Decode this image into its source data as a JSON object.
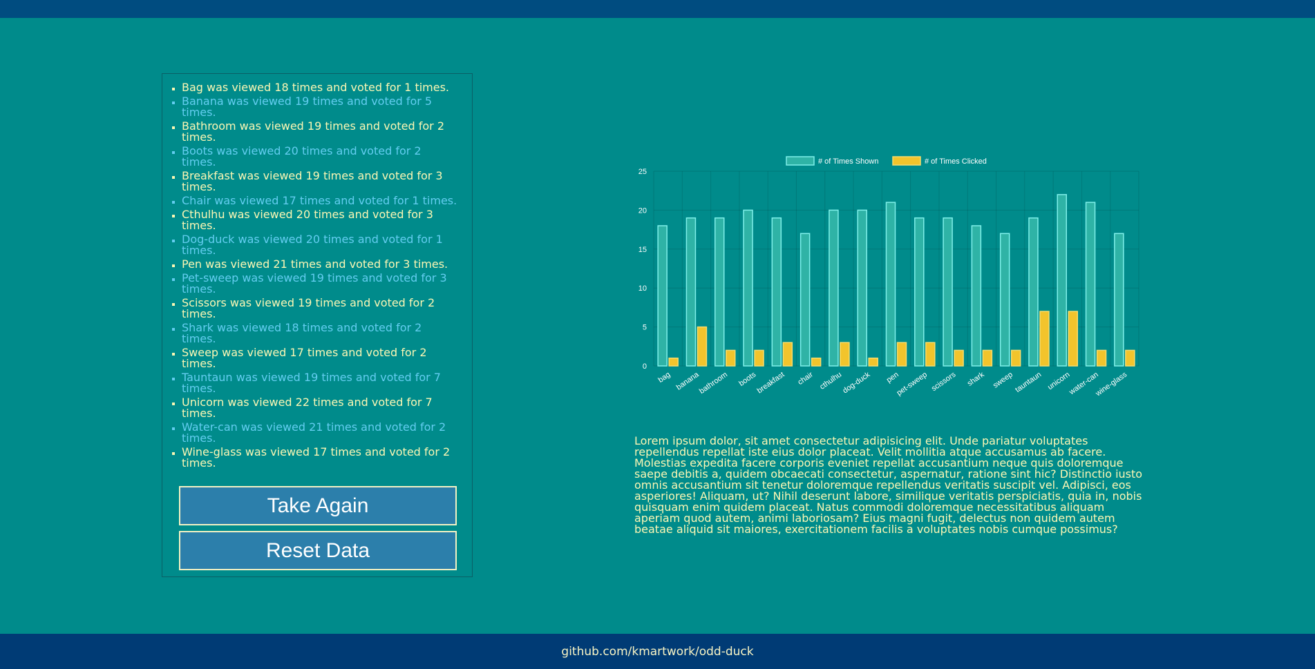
{
  "results": {
    "items": [
      "Bag was viewed 18 times and voted for 1 times.",
      "Banana was viewed 19 times and voted for 5 times.",
      "Bathroom was viewed 19 times and voted for 2 times.",
      "Boots was viewed 20 times and voted for 2 times.",
      "Breakfast was viewed 19 times and voted for 3 times.",
      "Chair was viewed 17 times and voted for 1 times.",
      "Cthulhu was viewed 20 times and voted for 3 times.",
      "Dog-duck was viewed 20 times and voted for 1 times.",
      "Pen was viewed 21 times and voted for 3 times.",
      "Pet-sweep was viewed 19 times and voted for 3 times.",
      "Scissors was viewed 19 times and voted for 2 times.",
      "Shark was viewed 18 times and voted for 2 times.",
      "Sweep was viewed 17 times and voted for 2 times.",
      "Tauntaun was viewed 19 times and voted for 7 times.",
      "Unicorn was viewed 22 times and voted for 7 times.",
      "Water-can was viewed 21 times and voted for 2 times.",
      "Wine-glass was viewed 17 times and voted for 2 times."
    ],
    "take_again_label": "Take Again",
    "reset_label": "Reset Data"
  },
  "chart_data": {
    "type": "bar",
    "categories": [
      "bag",
      "banana",
      "bathroom",
      "boots",
      "breakfast",
      "chair",
      "cthulhu",
      "dog-duck",
      "pen",
      "pet-sweep",
      "scissors",
      "shark",
      "sweep",
      "tauntaun",
      "unicorn",
      "water-can",
      "wine-glass"
    ],
    "series": [
      {
        "name": "# of Times Shown",
        "values": [
          18,
          19,
          19,
          20,
          19,
          17,
          20,
          20,
          21,
          19,
          19,
          18,
          17,
          19,
          22,
          21,
          17
        ],
        "fill": "#2fb3a6",
        "stroke": "#7ff0ea"
      },
      {
        "name": "# of Times Clicked",
        "values": [
          1,
          5,
          2,
          2,
          3,
          1,
          3,
          1,
          3,
          3,
          2,
          2,
          2,
          7,
          7,
          2,
          2
        ],
        "fill": "#f2c42c",
        "stroke": "#f8dc6c"
      }
    ],
    "yticks": [
      0,
      5,
      10,
      15,
      20,
      25
    ],
    "ylim": [
      0,
      25
    ],
    "grid": true,
    "legend": "top"
  },
  "description": "Lorem ipsum dolor, sit amet consectetur adipisicing elit. Unde pariatur voluptates repellendus repellat iste eius dolor placeat. Velit mollitia atque accusamus ab facere. Molestias expedita facere corporis eveniet repellat accusantium neque quis doloremque saepe debitis a, quidem obcaecati consectetur, aspernatur, ratione sint hic? Distinctio iusto omnis accusantium sit tenetur doloremque repellendus veritatis suscipit vel. Adipisci, eos asperiores! Aliquam, ut? Nihil deserunt labore, similique veritatis perspiciatis, quia in, nobis quisquam enim quidem placeat. Natus commodi doloremque necessitatibus aliquam aperiam quod autem, animi laboriosam? Eius magni fugit, delectus non quidem autem beatae aliquid sit maiores, exercitationem facilis a voluptates nobis cumque possimus?",
  "footer": {
    "link_text": "github.com/kmartwork/odd-duck"
  },
  "colors": {
    "background": "#008b8b",
    "header": "#004c80",
    "footer": "#003b75",
    "list_odd": "#fbf7b4",
    "list_even": "#63cdf0",
    "button": "#2c7fab"
  }
}
